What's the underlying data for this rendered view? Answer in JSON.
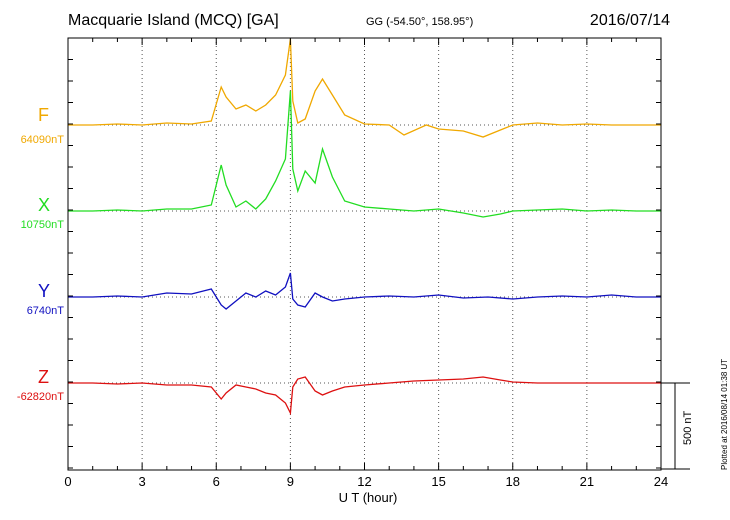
{
  "header": {
    "title": "Macquarie Island (MCQ)  [GA]",
    "coords": "GG (-54.50°, 158.95°)",
    "date": "2016/07/14"
  },
  "footer": {
    "plotted": "Plotted at 2016/08/14 01:38 UT",
    "scale_label": "500 nT"
  },
  "chart_data": {
    "type": "line",
    "xlabel": "U T (hour)",
    "xlim": [
      0,
      24
    ],
    "xticks": [
      "0",
      "3",
      "6",
      "9",
      "12",
      "15",
      "18",
      "21",
      "24"
    ],
    "grid": true,
    "scale_bar_nT": 500,
    "series": [
      {
        "name": "F",
        "baseline_label": "64090nT",
        "color": "#f0a800",
        "x": [
          0,
          1,
          2,
          3,
          4,
          5,
          5.8,
          6.2,
          6.4,
          6.8,
          7.2,
          7.6,
          8.0,
          8.4,
          8.8,
          9.0,
          9.1,
          9.3,
          9.6,
          10.0,
          10.3,
          10.7,
          11.2,
          12,
          13,
          13.6,
          14.5,
          15,
          16,
          16.8,
          17.5,
          18,
          19,
          20,
          21,
          22,
          23,
          24
        ],
        "y": [
          64090,
          64090,
          64095,
          64090,
          64100,
          64095,
          64110,
          64280,
          64230,
          64170,
          64190,
          64160,
          64190,
          64240,
          64340,
          64520,
          64210,
          64100,
          64120,
          64260,
          64320,
          64240,
          64140,
          64095,
          64090,
          64040,
          64090,
          64070,
          64060,
          64030,
          64065,
          64090,
          64100,
          64090,
          64095,
          64090,
          64090,
          64090
        ]
      },
      {
        "name": "X",
        "baseline_label": "10750nT",
        "color": "#22dd22",
        "x": [
          0,
          1,
          2,
          3,
          4,
          5,
          5.8,
          6.2,
          6.4,
          6.8,
          7.2,
          7.6,
          8.0,
          8.4,
          8.8,
          9.0,
          9.1,
          9.3,
          9.6,
          10.0,
          10.3,
          10.7,
          11.2,
          12,
          13,
          14,
          15,
          16,
          16.8,
          17.5,
          18,
          19,
          20,
          21,
          22,
          23,
          24
        ],
        "y": [
          10750,
          10750,
          10755,
          10750,
          10760,
          10760,
          10780,
          10980,
          10880,
          10770,
          10800,
          10760,
          10810,
          10900,
          11010,
          11350,
          10960,
          10850,
          10950,
          10890,
          11060,
          10920,
          10800,
          10770,
          10760,
          10750,
          10760,
          10740,
          10720,
          10735,
          10750,
          10755,
          10760,
          10750,
          10755,
          10750,
          10750
        ]
      },
      {
        "name": "Y",
        "baseline_label": "6740nT",
        "color": "#1010c0",
        "x": [
          0,
          1,
          2,
          3,
          4,
          5,
          5.8,
          6.2,
          6.4,
          6.8,
          7.2,
          7.6,
          8.0,
          8.4,
          8.8,
          9.0,
          9.1,
          9.3,
          9.6,
          10.0,
          10.3,
          10.7,
          11.2,
          12,
          13,
          14,
          15,
          16,
          17,
          18,
          19,
          20,
          21,
          22,
          23,
          24
        ],
        "y": [
          6740,
          6740,
          6745,
          6740,
          6760,
          6755,
          6780,
          6700,
          6680,
          6720,
          6760,
          6740,
          6770,
          6750,
          6790,
          6860,
          6730,
          6700,
          6690,
          6760,
          6740,
          6720,
          6730,
          6740,
          6745,
          6740,
          6750,
          6735,
          6740,
          6730,
          6740,
          6745,
          6740,
          6750,
          6740,
          6740
        ]
      },
      {
        "name": "Z",
        "baseline_label": "-62820nT",
        "color": "#dd1010",
        "x": [
          0,
          1,
          2,
          3,
          4,
          5,
          5.8,
          6.2,
          6.4,
          6.8,
          7.2,
          7.6,
          8.0,
          8.4,
          8.8,
          9.0,
          9.1,
          9.3,
          9.6,
          10.0,
          10.3,
          10.7,
          11.2,
          12,
          13,
          14,
          15,
          16,
          16.8,
          17.5,
          18,
          19,
          20,
          21,
          22,
          23,
          24
        ],
        "y": [
          -62820,
          -62820,
          -62825,
          -62820,
          -62830,
          -62830,
          -62840,
          -62900,
          -62870,
          -62830,
          -62840,
          -62850,
          -62870,
          -62880,
          -62920,
          -62970,
          -62840,
          -62800,
          -62790,
          -62860,
          -62880,
          -62860,
          -62840,
          -62830,
          -62820,
          -62810,
          -62805,
          -62800,
          -62790,
          -62805,
          -62815,
          -62820,
          -62820,
          -62820,
          -62820,
          -62820,
          -62820
        ]
      }
    ]
  }
}
